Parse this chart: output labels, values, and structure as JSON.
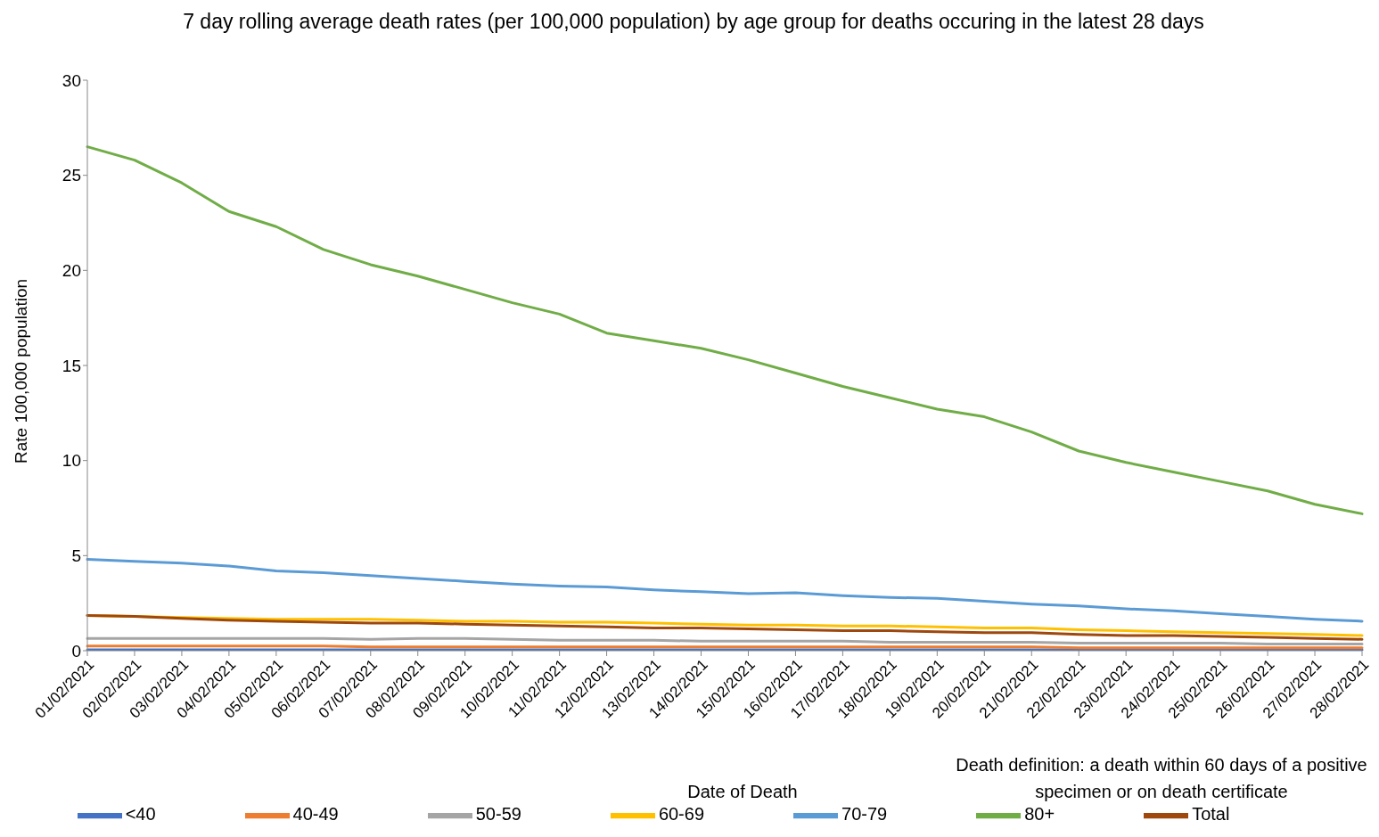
{
  "chart_data": {
    "type": "line",
    "title": "7 day rolling average death rates (per 100,000 population) by age group for deaths occuring in the latest 28 days",
    "xlabel": "Date of Death",
    "ylabel": "Rate 100,000 population",
    "annotations": [
      "Death definition: a death within 60 days of a positive specimen or on death certificate"
    ],
    "categories": [
      "01/02/2021",
      "02/02/2021",
      "03/02/2021",
      "04/02/2021",
      "05/02/2021",
      "06/02/2021",
      "07/02/2021",
      "08/02/2021",
      "09/02/2021",
      "10/02/2021",
      "11/02/2021",
      "12/02/2021",
      "13/02/2021",
      "14/02/2021",
      "15/02/2021",
      "16/02/2021",
      "17/02/2021",
      "18/02/2021",
      "19/02/2021",
      "20/02/2021",
      "21/02/2021",
      "22/02/2021",
      "23/02/2021",
      "24/02/2021",
      "25/02/2021",
      "26/02/2021",
      "27/02/2021",
      "28/02/2021"
    ],
    "series": [
      {
        "name": "<40",
        "color": "#4472c4",
        "values": [
          0.05,
          0.05,
          0.05,
          0.05,
          0.05,
          0.05,
          0.05,
          0.05,
          0.05,
          0.05,
          0.05,
          0.05,
          0.05,
          0.05,
          0.05,
          0.05,
          0.05,
          0.05,
          0.05,
          0.05,
          0.05,
          0.05,
          0.05,
          0.05,
          0.05,
          0.05,
          0.05,
          0.05
        ]
      },
      {
        "name": "40-49",
        "color": "#ed7d31",
        "values": [
          0.25,
          0.25,
          0.25,
          0.25,
          0.25,
          0.25,
          0.2,
          0.2,
          0.2,
          0.2,
          0.2,
          0.2,
          0.2,
          0.2,
          0.2,
          0.2,
          0.2,
          0.2,
          0.2,
          0.2,
          0.2,
          0.15,
          0.15,
          0.15,
          0.15,
          0.15,
          0.15,
          0.15
        ]
      },
      {
        "name": "50-59",
        "color": "#a5a5a5",
        "values": [
          0.65,
          0.65,
          0.65,
          0.65,
          0.65,
          0.65,
          0.6,
          0.65,
          0.65,
          0.6,
          0.55,
          0.55,
          0.55,
          0.5,
          0.5,
          0.5,
          0.5,
          0.45,
          0.45,
          0.45,
          0.45,
          0.4,
          0.4,
          0.4,
          0.4,
          0.35,
          0.35,
          0.35
        ]
      },
      {
        "name": "60-69",
        "color": "#ffc000",
        "values": [
          1.85,
          1.8,
          1.75,
          1.7,
          1.65,
          1.65,
          1.65,
          1.6,
          1.55,
          1.55,
          1.5,
          1.5,
          1.45,
          1.4,
          1.35,
          1.35,
          1.3,
          1.3,
          1.25,
          1.2,
          1.2,
          1.1,
          1.05,
          1.0,
          0.95,
          0.9,
          0.85,
          0.8
        ]
      },
      {
        "name": "70-79",
        "color": "#5b9bd5",
        "values": [
          4.8,
          4.7,
          4.6,
          4.45,
          4.2,
          4.1,
          3.95,
          3.8,
          3.65,
          3.5,
          3.4,
          3.35,
          3.2,
          3.1,
          3.0,
          3.05,
          2.9,
          2.8,
          2.75,
          2.6,
          2.45,
          2.35,
          2.2,
          2.1,
          1.95,
          1.8,
          1.65,
          1.55
        ]
      },
      {
        "name": "80+",
        "color": "#70ad47",
        "values": [
          26.5,
          25.8,
          24.6,
          23.1,
          22.3,
          21.1,
          20.3,
          19.7,
          19.0,
          18.3,
          17.7,
          16.7,
          16.3,
          15.9,
          15.3,
          14.6,
          13.9,
          13.3,
          12.7,
          12.3,
          11.5,
          10.5,
          9.9,
          9.4,
          8.9,
          8.4,
          7.7,
          7.2
        ]
      },
      {
        "name": "Total",
        "color": "#9e480e",
        "values": [
          1.85,
          1.8,
          1.7,
          1.6,
          1.55,
          1.5,
          1.45,
          1.45,
          1.4,
          1.35,
          1.3,
          1.25,
          1.2,
          1.2,
          1.15,
          1.1,
          1.05,
          1.05,
          1.0,
          0.95,
          0.95,
          0.85,
          0.8,
          0.8,
          0.75,
          0.7,
          0.65,
          0.6
        ]
      }
    ],
    "ylim": [
      0,
      30
    ],
    "yticks": [
      0,
      5,
      10,
      15,
      20,
      25,
      30
    ],
    "grid": false,
    "legend": "bottom",
    "marker": "none",
    "line_style": "solid"
  }
}
